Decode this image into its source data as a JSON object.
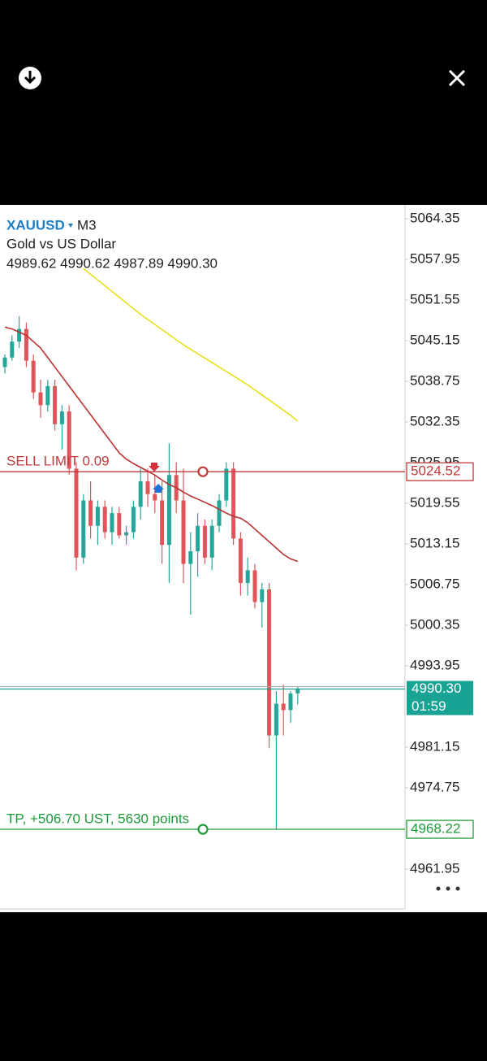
{
  "chart_data": {
    "type": "candlestick",
    "symbol": "XAUUSD",
    "timeframe": "M3",
    "description": "Gold vs US Dollar",
    "ohlc_text": "4989.62 4990.62 4987.89 4990.30",
    "countdown": "01:59",
    "ylim": [
      4955.68,
      5066.53
    ],
    "yticks": [
      5064.35,
      5057.95,
      5051.55,
      5045.15,
      5038.75,
      5032.35,
      5025.95,
      5019.55,
      5013.15,
      5006.75,
      5000.35,
      4993.95,
      4981.15,
      4974.75,
      4961.95
    ],
    "up_color": "#26a69a",
    "down_color": "#e0545a",
    "open": [
      5041,
      5042.5,
      5045,
      5047,
      5042,
      5037,
      5035,
      5038,
      5032,
      5034,
      5025,
      5011,
      5020,
      5016,
      5019,
      5015,
      5018,
      5014.5,
      5015,
      5019,
      5023,
      5021,
      5020,
      5013,
      5024,
      5020,
      5010,
      5012,
      5016,
      5011,
      5016,
      5020,
      5025,
      5014,
      5007,
      5009,
      5004,
      5006,
      4983,
      4988,
      4987,
      4989.62
    ],
    "high": [
      5043,
      5046,
      5049,
      5048,
      5043,
      5039,
      5039,
      5039,
      5035,
      5035,
      5026,
      5021,
      5023,
      5020,
      5020,
      5019,
      5019,
      5016,
      5020,
      5025,
      5025,
      5024,
      5023,
      5029,
      5026,
      5025,
      5015,
      5018,
      5017,
      5017,
      5021,
      5026,
      5026,
      5015,
      5011,
      5010,
      5007,
      5007,
      4990,
      4991,
      4990,
      4990.62
    ],
    "low": [
      5040,
      5042,
      5044,
      5041,
      5036,
      5033,
      5034,
      5031,
      5028,
      5024,
      5009,
      5010,
      5014,
      5013,
      5014,
      5013,
      5014,
      5013,
      5014,
      5017,
      5019,
      5018,
      5010,
      5007,
      5018,
      5007,
      5002,
      5008,
      5010,
      5009,
      5015,
      5019,
      5013,
      5005,
      5005,
      5003,
      5000,
      4981,
      4968.22,
      4983,
      4985,
      4987.89
    ],
    "close": [
      5042.5,
      5045,
      5047,
      5042,
      5037,
      5035,
      5038,
      5032,
      5034,
      5025,
      5011,
      5020,
      5016,
      5019,
      5015,
      5018,
      5014.5,
      5015,
      5019,
      5023,
      5021,
      5020,
      5013,
      5024,
      5020,
      5010,
      5012,
      5016,
      5011,
      5016,
      5020,
      5025,
      5014,
      5007,
      5009,
      5004,
      5006,
      4983,
      4988,
      4987,
      4989.62,
      4990.3
    ],
    "series": [
      {
        "color": "#b8322f",
        "values": [
          5047.3,
          5047,
          5046.5,
          5046,
          5045,
          5044,
          5042.5,
          5041,
          5039.5,
          5038,
          5036.5,
          5035,
          5033.5,
          5032,
          5030.5,
          5029,
          5027.5,
          5026.5,
          5025.8,
          5025.2,
          5024.6,
          5024,
          5023.2,
          5022.5,
          5022,
          5021.3,
          5020.7,
          5020.2,
          5019.7,
          5019.2,
          5018.6,
          5018,
          5017.5,
          5017.2,
          5016.5,
          5015.5,
          5014.5,
          5013.5,
          5012.5,
          5011.5,
          5010.8,
          5010.4
        ]
      },
      {
        "color": "#e8e01a",
        "values": [
          null,
          null,
          null,
          null,
          null,
          null,
          null,
          null,
          null,
          null,
          null,
          5056.5,
          5055.6,
          5054.7,
          5053.8,
          5052.9,
          5052,
          5051.1,
          5050.2,
          5049.3,
          5048.5,
          5047.7,
          5046.9,
          5046.1,
          5045.3,
          5044.5,
          5043.8,
          5043.1,
          5042.4,
          5041.7,
          5041,
          5040.3,
          5039.6,
          5038.9,
          5038.2,
          5037.4,
          5036.6,
          5035.8,
          5035,
          5034.2,
          5033.4,
          5032.5
        ]
      }
    ],
    "levels": [
      {
        "label": "SELL LIMIT 0.09",
        "value": 5024.52,
        "color": "#c0393b"
      },
      {
        "value": 4990.3,
        "value_label": "4990.30",
        "color": "#19a394"
      },
      {
        "label": "TP, +506.70 UST, 5630 points",
        "value": 4968.22,
        "color": "#1f9a3a"
      }
    ]
  }
}
